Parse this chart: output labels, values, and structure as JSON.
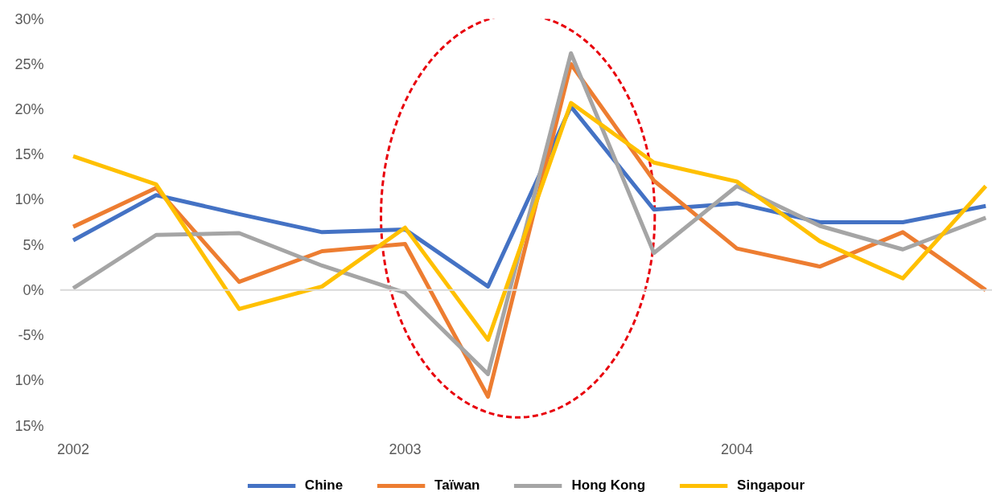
{
  "chart_data": {
    "type": "line",
    "categories": [
      "2002",
      null,
      null,
      null,
      "2003",
      null,
      null,
      null,
      "2004",
      null,
      null,
      null
    ],
    "series": [
      {
        "name": "Chine",
        "color": "#4472c4",
        "values": [
          5.5,
          10.5,
          8.4,
          6.4,
          6.7,
          0.4,
          20.3,
          8.9,
          9.6,
          7.5,
          7.5,
          9.3
        ]
      },
      {
        "name": "Taïwan",
        "color": "#ed7d31",
        "values": [
          7.0,
          11.3,
          0.9,
          4.3,
          5.1,
          -11.8,
          25.0,
          12.1,
          4.6,
          2.6,
          6.4,
          0
        ]
      },
      {
        "name": "Hong Kong",
        "color": "#a5a5a5",
        "values": [
          0.2,
          6.1,
          6.3,
          2.7,
          -0.3,
          -9.3,
          26.2,
          4.1,
          11.5,
          7.1,
          4.5,
          8.0
        ]
      },
      {
        "name": "Singapour",
        "color": "#ffc000",
        "values": [
          14.8,
          11.7,
          -2.1,
          0.4,
          6.9,
          -5.5,
          20.7,
          14.1,
          12.0,
          5.4,
          1.3,
          11.5
        ]
      }
    ],
    "ylim": [
      -15,
      30
    ],
    "yticks": [
      {
        "value": -15,
        "label": "15%"
      },
      {
        "value": -10,
        "label": "10%"
      },
      {
        "value": -5,
        "label": "-5%"
      },
      {
        "value": 0,
        "label": "0%"
      },
      {
        "value": 5,
        "label": "5%"
      },
      {
        "value": 10,
        "label": "10%"
      },
      {
        "value": 15,
        "label": "15%"
      },
      {
        "value": 20,
        "label": "20%"
      },
      {
        "value": 25,
        "label": "25%"
      },
      {
        "value": 30,
        "label": "30%"
      }
    ],
    "ref_lines": [
      {
        "axis": "y",
        "value": 0,
        "color": "#d9d9d9"
      }
    ],
    "grid": false,
    "legend": "bottom",
    "marker": "none",
    "line_style": "solid"
  }
}
